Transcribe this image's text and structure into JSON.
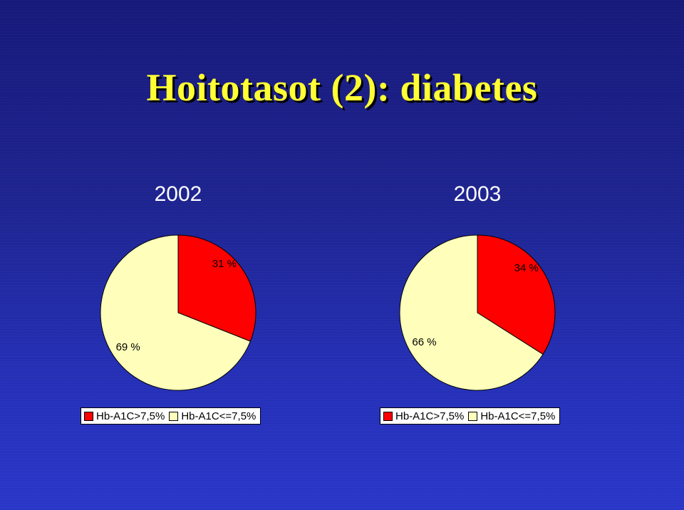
{
  "title": "Hoitotasot (2): diabetes",
  "colors": {
    "title": "#ffff33",
    "high": "#ff0000",
    "low": "#ffffbb"
  },
  "chart_data": [
    {
      "type": "pie",
      "title": "2002",
      "categories": [
        "Hb-A1C>7,5%",
        "Hb-A1C<=7,5%"
      ],
      "values": [
        31,
        69
      ],
      "labels": [
        "31 %",
        "69 %"
      ],
      "legend": "bottom"
    },
    {
      "type": "pie",
      "title": "2003",
      "categories": [
        "Hb-A1C>7,5%",
        "Hb-A1C<=7,5%"
      ],
      "values": [
        34,
        66
      ],
      "labels": [
        "34 %",
        "66 %"
      ],
      "legend": "bottom"
    }
  ]
}
